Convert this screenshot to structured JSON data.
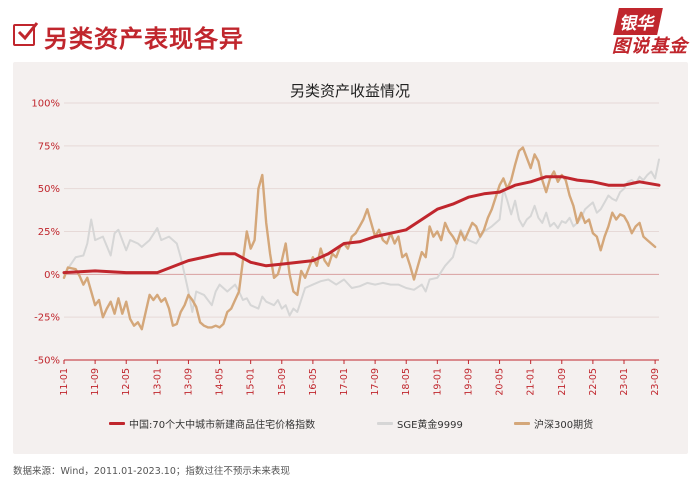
{
  "header": {
    "title": "另类资产表现各异",
    "logo_top": "银华",
    "logo_bottom": "图说基金"
  },
  "footer": {
    "source": "数据来源：Wind，2011.01-2023.10；指数过往不预示未来表现"
  },
  "colors": {
    "housing": "#c0262d",
    "gold": "#d6d6d6",
    "csi300": "#d4a77a",
    "accent": "#c0262d"
  },
  "chart_data": {
    "type": "line",
    "title": "另类资产收益情况",
    "xlabel": "",
    "ylabel": "",
    "ylim": [
      -50,
      100
    ],
    "y_ticks": [
      "100%",
      "75%",
      "50%",
      "25%",
      "0%",
      "-25%",
      "-50%"
    ],
    "y_tick_values": [
      100,
      75,
      50,
      25,
      0,
      -25,
      -50
    ],
    "x_tick_labels": [
      "11-01",
      "11-09",
      "12-05",
      "13-01",
      "13-09",
      "14-05",
      "15-01",
      "15-09",
      "16-05",
      "17-01",
      "17-09",
      "18-05",
      "19-01",
      "19-09",
      "20-05",
      "21-01",
      "21-09",
      "22-05",
      "23-01",
      "23-09"
    ],
    "x_tick_month_index": [
      0,
      8,
      16,
      24,
      32,
      40,
      48,
      56,
      64,
      72,
      80,
      88,
      96,
      104,
      112,
      120,
      128,
      136,
      144,
      152
    ],
    "x_range_month_index": [
      0,
      153
    ],
    "legend_position": "bottom",
    "series": [
      {
        "name": "中国:70个大中城市新建商品住宅价格指数",
        "color": "#c0262d",
        "points": [
          [
            0,
            1
          ],
          [
            8,
            2
          ],
          [
            16,
            1
          ],
          [
            24,
            1
          ],
          [
            32,
            8
          ],
          [
            40,
            12
          ],
          [
            44,
            12
          ],
          [
            48,
            7
          ],
          [
            52,
            5
          ],
          [
            56,
            6
          ],
          [
            64,
            8
          ],
          [
            68,
            12
          ],
          [
            72,
            18
          ],
          [
            76,
            19
          ],
          [
            80,
            22
          ],
          [
            84,
            24
          ],
          [
            88,
            26
          ],
          [
            92,
            32
          ],
          [
            96,
            38
          ],
          [
            100,
            41
          ],
          [
            104,
            45
          ],
          [
            108,
            47
          ],
          [
            112,
            48
          ],
          [
            116,
            52
          ],
          [
            120,
            54
          ],
          [
            124,
            57
          ],
          [
            128,
            57
          ],
          [
            132,
            55
          ],
          [
            136,
            54
          ],
          [
            140,
            52
          ],
          [
            144,
            52
          ],
          [
            148,
            54
          ],
          [
            153,
            52
          ]
        ]
      },
      {
        "name": "SGE黄金9999",
        "color": "#d6d6d6",
        "points": [
          [
            0,
            0
          ],
          [
            3,
            10
          ],
          [
            5,
            11
          ],
          [
            6,
            18
          ],
          [
            7,
            32
          ],
          [
            8,
            20
          ],
          [
            10,
            22
          ],
          [
            12,
            11
          ],
          [
            13,
            24
          ],
          [
            14,
            26
          ],
          [
            16,
            14
          ],
          [
            17,
            20
          ],
          [
            19,
            18
          ],
          [
            20,
            16
          ],
          [
            22,
            20
          ],
          [
            24,
            27
          ],
          [
            25,
            20
          ],
          [
            27,
            22
          ],
          [
            29,
            18
          ],
          [
            30,
            10
          ],
          [
            31,
            0
          ],
          [
            32,
            -10
          ],
          [
            33,
            -22
          ],
          [
            34,
            -10
          ],
          [
            36,
            -12
          ],
          [
            38,
            -18
          ],
          [
            39,
            -10
          ],
          [
            40,
            -6
          ],
          [
            42,
            -10
          ],
          [
            44,
            -6
          ],
          [
            45,
            -10
          ],
          [
            46,
            -15
          ],
          [
            47,
            -14
          ],
          [
            48,
            -18
          ],
          [
            50,
            -20
          ],
          [
            51,
            -13
          ],
          [
            52,
            -16
          ],
          [
            54,
            -18
          ],
          [
            55,
            -15
          ],
          [
            56,
            -20
          ],
          [
            57,
            -18
          ],
          [
            58,
            -24
          ],
          [
            59,
            -20
          ],
          [
            60,
            -22
          ],
          [
            61,
            -15
          ],
          [
            62,
            -8
          ],
          [
            64,
            -6
          ],
          [
            66,
            -4
          ],
          [
            68,
            -3
          ],
          [
            70,
            -6
          ],
          [
            72,
            -3
          ],
          [
            74,
            -8
          ],
          [
            76,
            -7
          ],
          [
            78,
            -5
          ],
          [
            80,
            -6
          ],
          [
            82,
            -5
          ],
          [
            84,
            -6
          ],
          [
            86,
            -6
          ],
          [
            88,
            -8
          ],
          [
            90,
            -9
          ],
          [
            92,
            -6
          ],
          [
            93,
            -10
          ],
          [
            94,
            -3
          ],
          [
            96,
            -2
          ],
          [
            98,
            5
          ],
          [
            100,
            10
          ],
          [
            101,
            18
          ],
          [
            102,
            26
          ],
          [
            103,
            22
          ],
          [
            104,
            20
          ],
          [
            106,
            18
          ],
          [
            108,
            25
          ],
          [
            110,
            28
          ],
          [
            112,
            32
          ],
          [
            113,
            50
          ],
          [
            114,
            43
          ],
          [
            115,
            35
          ],
          [
            116,
            43
          ],
          [
            117,
            32
          ],
          [
            118,
            28
          ],
          [
            119,
            32
          ],
          [
            120,
            34
          ],
          [
            121,
            40
          ],
          [
            122,
            33
          ],
          [
            123,
            30
          ],
          [
            124,
            36
          ],
          [
            125,
            28
          ],
          [
            126,
            30
          ],
          [
            127,
            27
          ],
          [
            128,
            31
          ],
          [
            129,
            30
          ],
          [
            130,
            33
          ],
          [
            131,
            28
          ],
          [
            132,
            30
          ],
          [
            133,
            33
          ],
          [
            134,
            38
          ],
          [
            135,
            40
          ],
          [
            136,
            42
          ],
          [
            137,
            36
          ],
          [
            138,
            38
          ],
          [
            139,
            42
          ],
          [
            140,
            46
          ],
          [
            141,
            44
          ],
          [
            142,
            43
          ],
          [
            143,
            48
          ],
          [
            144,
            50
          ],
          [
            145,
            54
          ],
          [
            146,
            55
          ],
          [
            147,
            53
          ],
          [
            148,
            57
          ],
          [
            149,
            55
          ],
          [
            150,
            58
          ],
          [
            151,
            60
          ],
          [
            152,
            56
          ],
          [
            153,
            67
          ]
        ]
      },
      {
        "name": "沪深300期货",
        "color": "#d4a77a",
        "points": [
          [
            0,
            -2
          ],
          [
            1,
            4
          ],
          [
            3,
            3
          ],
          [
            4,
            -1
          ],
          [
            5,
            -6
          ],
          [
            6,
            -2
          ],
          [
            7,
            -10
          ],
          [
            8,
            -18
          ],
          [
            9,
            -15
          ],
          [
            10,
            -25
          ],
          [
            11,
            -20
          ],
          [
            12,
            -16
          ],
          [
            13,
            -23
          ],
          [
            14,
            -14
          ],
          [
            15,
            -23
          ],
          [
            16,
            -16
          ],
          [
            17,
            -26
          ],
          [
            18,
            -30
          ],
          [
            19,
            -28
          ],
          [
            20,
            -32
          ],
          [
            21,
            -22
          ],
          [
            22,
            -12
          ],
          [
            23,
            -15
          ],
          [
            24,
            -12
          ],
          [
            25,
            -16
          ],
          [
            26,
            -14
          ],
          [
            27,
            -20
          ],
          [
            28,
            -30
          ],
          [
            29,
            -29
          ],
          [
            30,
            -22
          ],
          [
            31,
            -18
          ],
          [
            32,
            -12
          ],
          [
            33,
            -15
          ],
          [
            34,
            -19
          ],
          [
            35,
            -28
          ],
          [
            36,
            -30
          ],
          [
            37,
            -31
          ],
          [
            38,
            -31
          ],
          [
            39,
            -30
          ],
          [
            40,
            -31
          ],
          [
            41,
            -29
          ],
          [
            42,
            -22
          ],
          [
            43,
            -20
          ],
          [
            44,
            -15
          ],
          [
            45,
            -10
          ],
          [
            46,
            8
          ],
          [
            47,
            25
          ],
          [
            48,
            15
          ],
          [
            49,
            20
          ],
          [
            50,
            50
          ],
          [
            51,
            58
          ],
          [
            52,
            30
          ],
          [
            53,
            12
          ],
          [
            54,
            -2
          ],
          [
            55,
            0
          ],
          [
            56,
            8
          ],
          [
            57,
            18
          ],
          [
            58,
            0
          ],
          [
            59,
            -10
          ],
          [
            60,
            -12
          ],
          [
            61,
            2
          ],
          [
            62,
            -2
          ],
          [
            63,
            4
          ],
          [
            64,
            10
          ],
          [
            65,
            5
          ],
          [
            66,
            15
          ],
          [
            67,
            8
          ],
          [
            68,
            5
          ],
          [
            69,
            12
          ],
          [
            70,
            10
          ],
          [
            71,
            16
          ],
          [
            72,
            18
          ],
          [
            73,
            15
          ],
          [
            74,
            22
          ],
          [
            75,
            24
          ],
          [
            76,
            28
          ],
          [
            77,
            32
          ],
          [
            78,
            38
          ],
          [
            79,
            30
          ],
          [
            80,
            22
          ],
          [
            81,
            26
          ],
          [
            82,
            20
          ],
          [
            83,
            18
          ],
          [
            84,
            24
          ],
          [
            85,
            18
          ],
          [
            86,
            22
          ],
          [
            87,
            10
          ],
          [
            88,
            12
          ],
          [
            89,
            5
          ],
          [
            90,
            -3
          ],
          [
            91,
            5
          ],
          [
            92,
            13
          ],
          [
            93,
            10
          ],
          [
            94,
            28
          ],
          [
            95,
            22
          ],
          [
            96,
            25
          ],
          [
            97,
            20
          ],
          [
            98,
            30
          ],
          [
            99,
            25
          ],
          [
            100,
            22
          ],
          [
            101,
            18
          ],
          [
            102,
            25
          ],
          [
            103,
            20
          ],
          [
            104,
            25
          ],
          [
            105,
            30
          ],
          [
            106,
            28
          ],
          [
            107,
            22
          ],
          [
            108,
            26
          ],
          [
            109,
            33
          ],
          [
            110,
            38
          ],
          [
            111,
            45
          ],
          [
            112,
            52
          ],
          [
            113,
            56
          ],
          [
            114,
            50
          ],
          [
            115,
            55
          ],
          [
            116,
            64
          ],
          [
            117,
            72
          ],
          [
            118,
            74
          ],
          [
            119,
            68
          ],
          [
            120,
            62
          ],
          [
            121,
            70
          ],
          [
            122,
            66
          ],
          [
            123,
            55
          ],
          [
            124,
            48
          ],
          [
            125,
            56
          ],
          [
            126,
            60
          ],
          [
            127,
            54
          ],
          [
            128,
            58
          ],
          [
            129,
            55
          ],
          [
            130,
            46
          ],
          [
            131,
            40
          ],
          [
            132,
            30
          ],
          [
            133,
            36
          ],
          [
            134,
            30
          ],
          [
            135,
            32
          ],
          [
            136,
            24
          ],
          [
            137,
            22
          ],
          [
            138,
            14
          ],
          [
            139,
            22
          ],
          [
            140,
            28
          ],
          [
            141,
            36
          ],
          [
            142,
            32
          ],
          [
            143,
            35
          ],
          [
            144,
            34
          ],
          [
            145,
            30
          ],
          [
            146,
            24
          ],
          [
            147,
            28
          ],
          [
            148,
            30
          ],
          [
            149,
            22
          ],
          [
            150,
            20
          ],
          [
            151,
            18
          ],
          [
            152,
            16
          ]
        ]
      }
    ]
  }
}
